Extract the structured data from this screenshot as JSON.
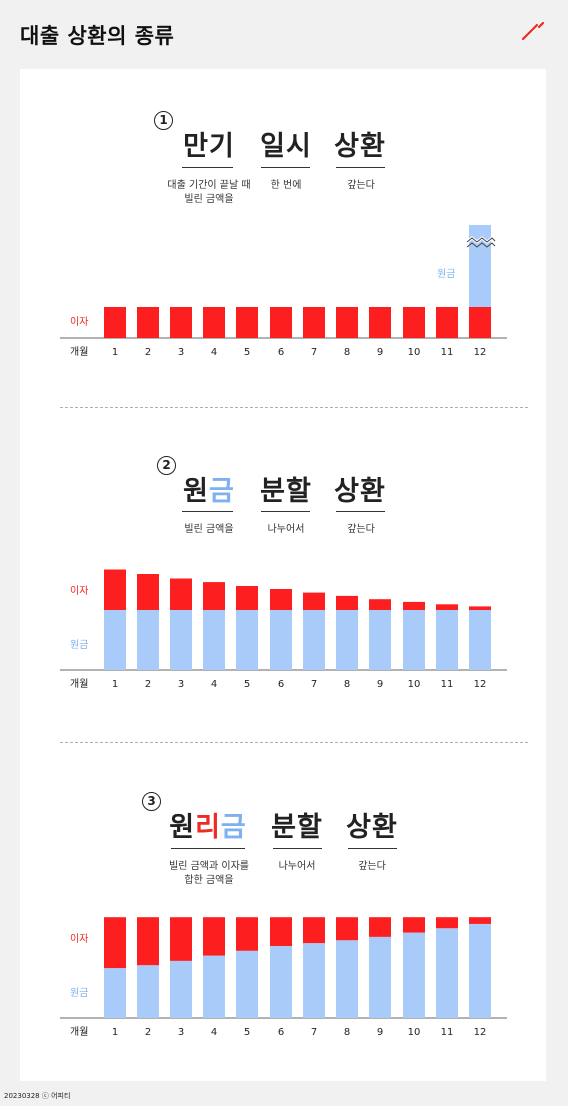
{
  "page": {
    "title": "대출 상환의 종류",
    "footer": "20230328 ⓒ 어피티"
  },
  "colors": {
    "interest": "#fd1f1f",
    "principal": "#a8cbfa",
    "blue_text": "#7fb0ef",
    "red_text": "#ee2a24"
  },
  "sections": [
    {
      "number": "①",
      "words": [
        "만기",
        "일시",
        "상환"
      ],
      "descs": [
        "대출 기간이 끝날 때\n빌린 금액을",
        "한 번에",
        "갚는다"
      ]
    },
    {
      "number": "②",
      "words": [
        "원금",
        "분할",
        "상환"
      ],
      "descs": [
        "빌린 금액을",
        "나누어서",
        "갚는다"
      ]
    },
    {
      "number": "③",
      "words": [
        "원리금",
        "분할",
        "상환"
      ],
      "descs": [
        "빌린 금액과 이자를\n합한 금액을",
        "나누어서",
        "갚는다"
      ]
    }
  ],
  "chart_data": [
    {
      "type": "bar",
      "stacked": true,
      "xlabel": "개월",
      "categories": [
        "1",
        "2",
        "3",
        "4",
        "5",
        "6",
        "7",
        "8",
        "9",
        "10",
        "11",
        "12"
      ],
      "series": [
        {
          "name": "원금",
          "values": [
            0,
            0,
            0,
            0,
            0,
            0,
            0,
            0,
            0,
            0,
            0,
            100
          ]
        },
        {
          "name": "이자",
          "values": [
            10,
            10,
            10,
            10,
            10,
            10,
            10,
            10,
            10,
            10,
            10,
            10
          ]
        }
      ],
      "axis_break": true
    },
    {
      "type": "bar",
      "stacked": true,
      "xlabel": "개월",
      "categories": [
        "1",
        "2",
        "3",
        "4",
        "5",
        "6",
        "7",
        "8",
        "9",
        "10",
        "11",
        "12"
      ],
      "series": [
        {
          "name": "원금",
          "values": [
            20,
            20,
            20,
            20,
            20,
            20,
            20,
            20,
            20,
            20,
            20,
            20
          ]
        },
        {
          "name": "이자",
          "values": [
            13.5,
            12.0,
            10.5,
            9.3,
            8.0,
            7.0,
            5.8,
            4.7,
            3.6,
            2.7,
            1.9,
            1.2
          ]
        }
      ]
    },
    {
      "type": "bar",
      "stacked": true,
      "xlabel": "개월",
      "categories": [
        "1",
        "2",
        "3",
        "4",
        "5",
        "6",
        "7",
        "8",
        "9",
        "10",
        "11",
        "12"
      ],
      "series": [
        {
          "name": "원금",
          "values": [
            10.4,
            11.0,
            11.9,
            13.0,
            14.0,
            15.0,
            15.6,
            16.2,
            16.9,
            17.8,
            18.7,
            19.6
          ]
        },
        {
          "name": "이자",
          "values": [
            10.6,
            10.0,
            9.1,
            8.0,
            7.0,
            6.0,
            5.4,
            4.8,
            4.1,
            3.2,
            2.3,
            1.4
          ]
        }
      ]
    }
  ]
}
